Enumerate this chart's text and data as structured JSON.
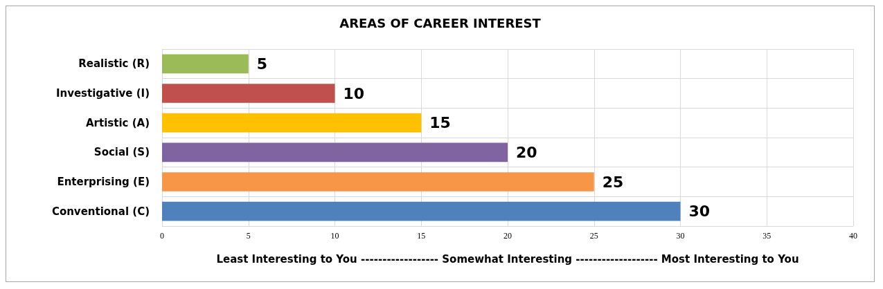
{
  "chart_data": {
    "type": "bar",
    "orientation": "horizontal",
    "title": "AREAS OF CAREER INTEREST",
    "xlabel": "Least Interesting to You ------------------ Somewhat Interesting ------------------- Most Interesting to You",
    "categories": [
      "Realistic (R)",
      "Investigative (I)",
      "Artistic (A)",
      "Social (S)",
      "Enterprising (E)",
      "Conventional (C)"
    ],
    "values": [
      5,
      10,
      15,
      20,
      25,
      30
    ],
    "colors": [
      "#9bbb59",
      "#c0504d",
      "#ffc000",
      "#8064a2",
      "#f79646",
      "#4f81bd"
    ],
    "xlim": [
      0,
      40
    ],
    "xticks": [
      0,
      5,
      10,
      15,
      20,
      25,
      30,
      35,
      40
    ],
    "grid": true,
    "data_labels": true
  }
}
